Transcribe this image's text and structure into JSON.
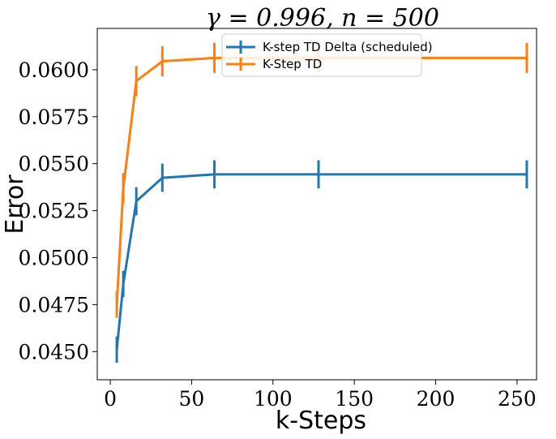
{
  "chart_data": {
    "type": "line",
    "title": "γ = 0.996, n = 500",
    "xlabel": "k-Steps",
    "ylabel": "Error",
    "xlim": [
      -8,
      262
    ],
    "ylim": [
      0.0435,
      0.0622
    ],
    "xticks": [
      0,
      50,
      100,
      150,
      200,
      250
    ],
    "xtick_labels": [
      "0",
      "50",
      "100",
      "150",
      "200",
      "250"
    ],
    "yticks": [
      0.045,
      0.0475,
      0.05,
      0.0525,
      0.055,
      0.0575,
      0.06
    ],
    "ytick_labels": [
      "0.0450",
      "0.0475",
      "0.0500",
      "0.0525",
      "0.0550",
      "0.0575",
      "0.0600"
    ],
    "grid": false,
    "legend_position": "top-center",
    "x": [
      4,
      8,
      16,
      32,
      64,
      128,
      256
    ],
    "series": [
      {
        "name": "K-step TD Delta (scheduled)",
        "color": "#1f77b4",
        "values": [
          0.0451,
          0.0486,
          0.053,
          0.05425,
          0.05443,
          0.05443,
          0.05443
        ],
        "error": [
          0.0007,
          0.0007,
          0.00075,
          0.00075,
          0.00075,
          0.00075,
          0.00075
        ]
      },
      {
        "name": "K-Step TD",
        "color": "#ff7f0e",
        "values": [
          0.0475,
          0.0537,
          0.0594,
          0.06045,
          0.06063,
          0.06063,
          0.06063
        ],
        "error": [
          0.0007,
          0.0008,
          0.0008,
          0.0008,
          0.0008,
          0.0008,
          0.0008
        ]
      }
    ]
  }
}
